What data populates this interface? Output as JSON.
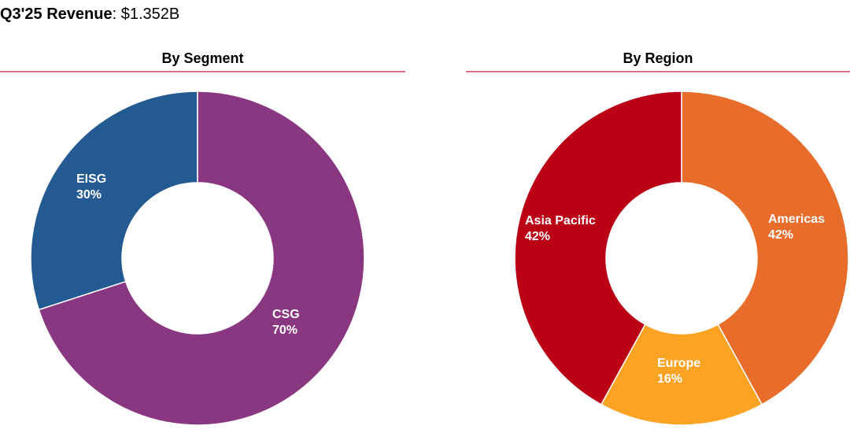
{
  "header": {
    "title_bold": "Q3'25 Revenue",
    "title_rest": ": $1.352B"
  },
  "chart_data": [
    {
      "type": "pie",
      "title": "By Segment",
      "slices": [
        {
          "label": "EISG",
          "value": 30,
          "display": "30%",
          "color": "#235a91"
        },
        {
          "label": "CSG",
          "value": 70,
          "display": "70%",
          "color": "#8a3782"
        }
      ]
    },
    {
      "type": "pie",
      "title": "By Region",
      "slices": [
        {
          "label": "Americas",
          "value": 42,
          "display": "42%",
          "color": "#e86c2a"
        },
        {
          "label": "Europe",
          "value": 16,
          "display": "16%",
          "color": "#fca324"
        },
        {
          "label": "Asia Pacific",
          "value": 42,
          "display": "42%",
          "color": "#bb0016"
        }
      ]
    }
  ]
}
